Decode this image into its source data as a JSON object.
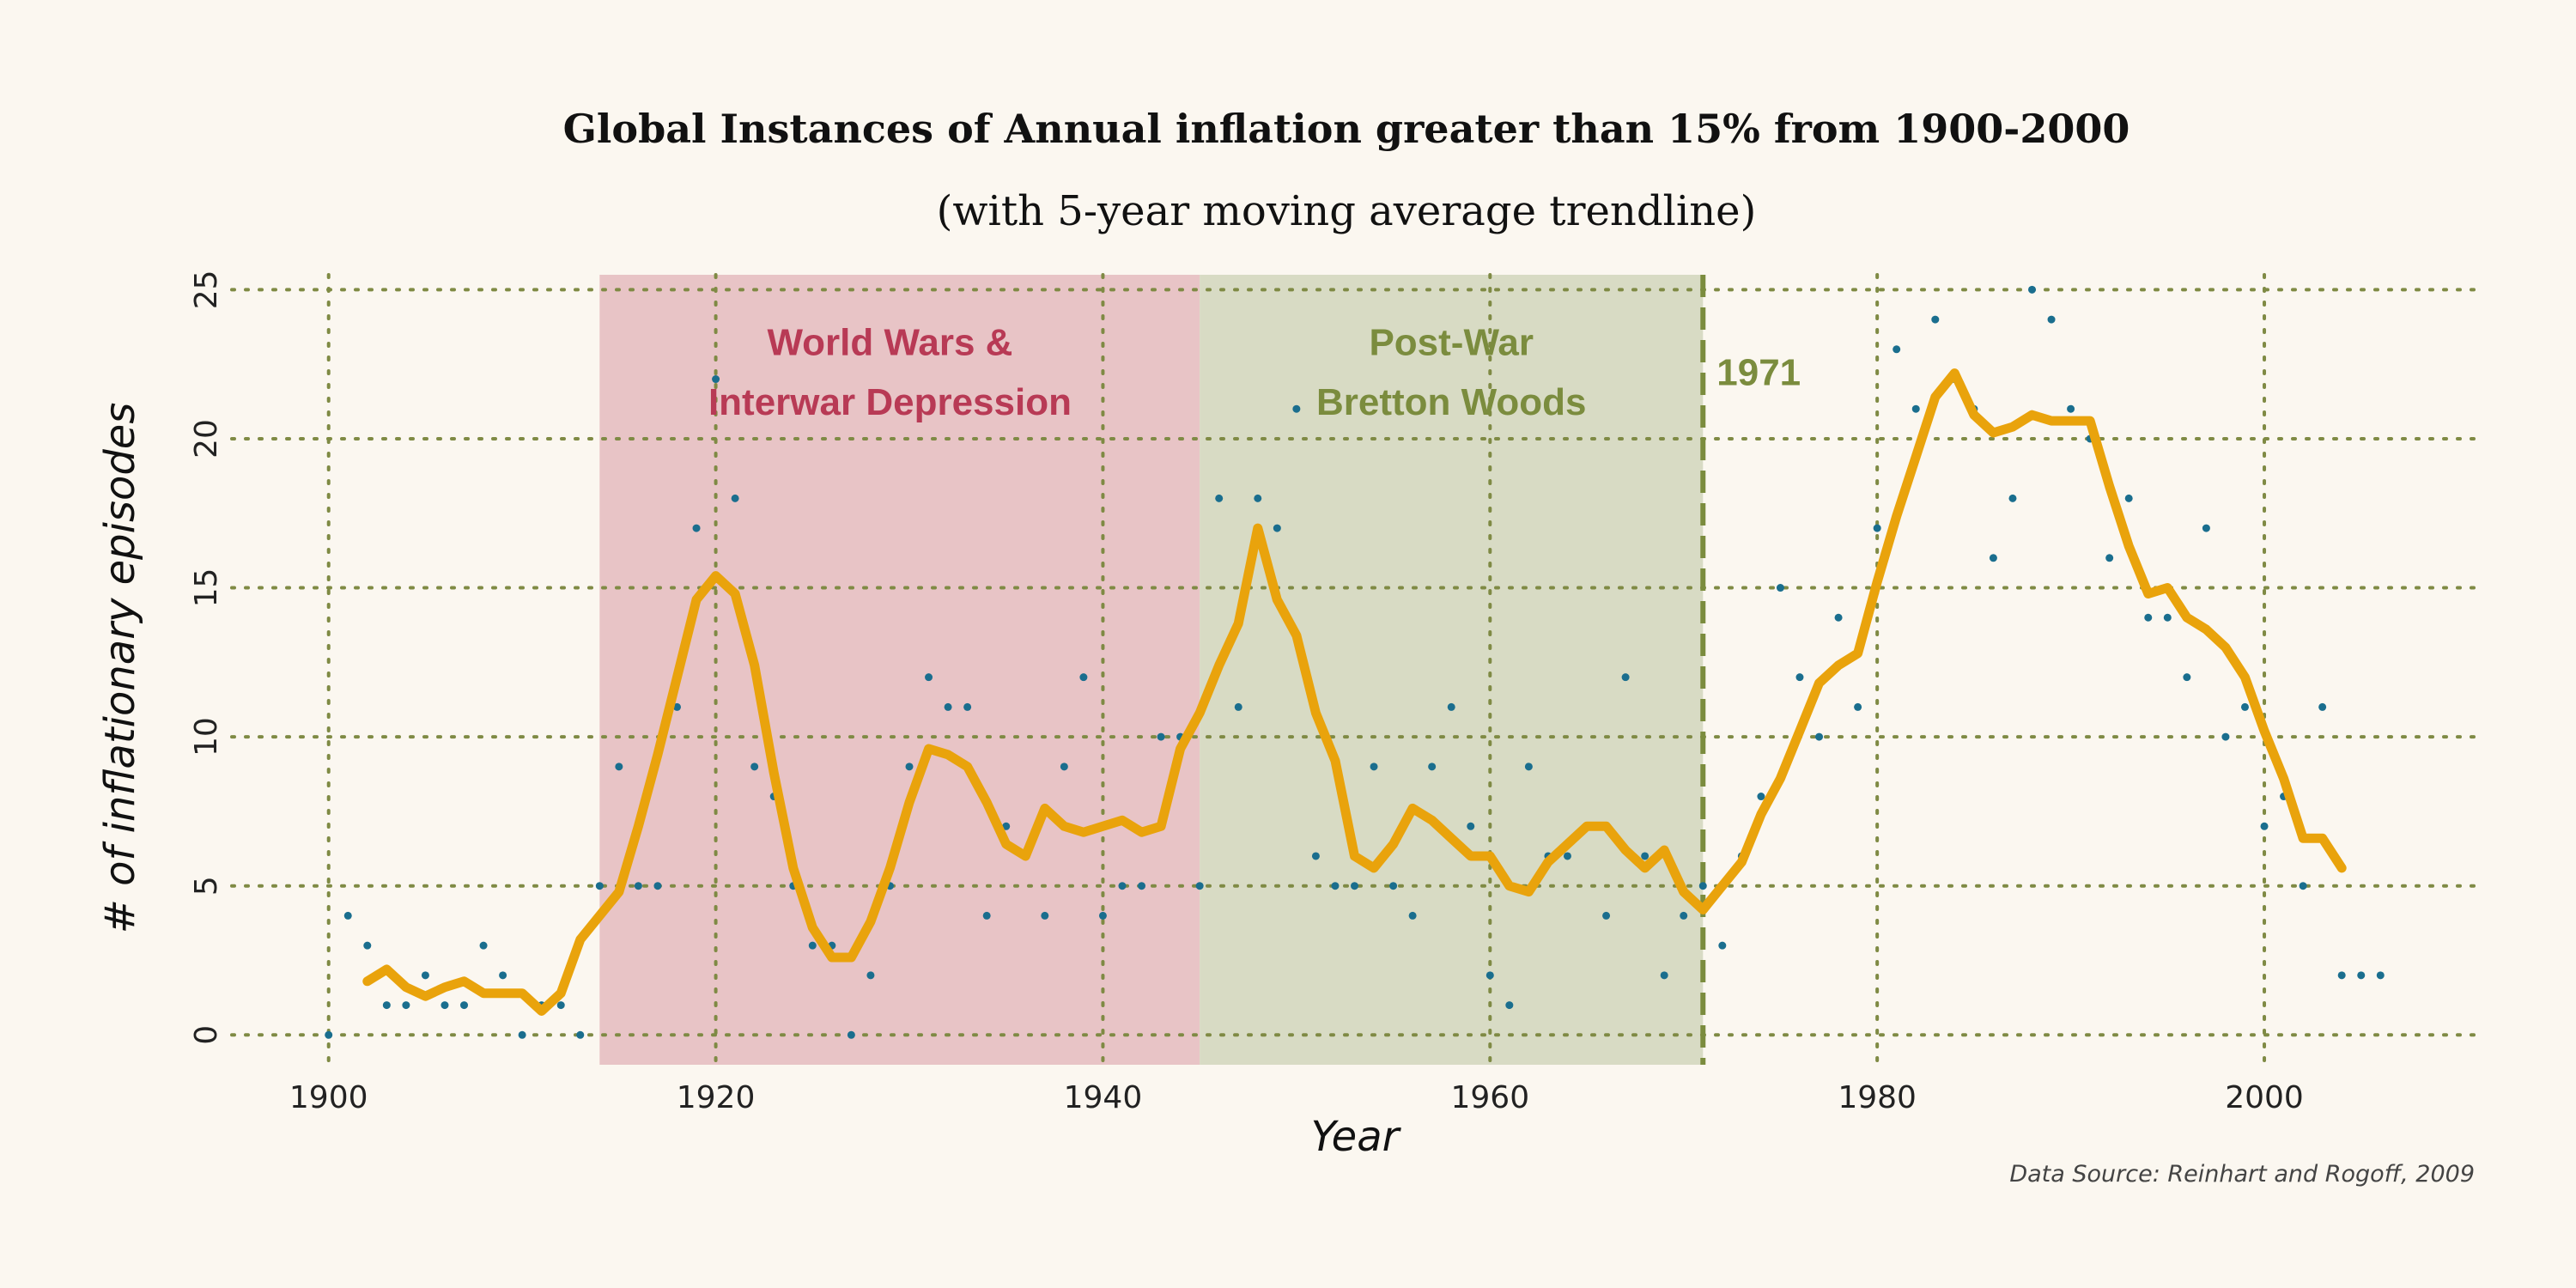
{
  "chart_data": {
    "type": "scatter",
    "title": "Global Instances of Annual inflation greater than 15% from 1900-2000",
    "subtitle": "(with 5-year moving average trendline)",
    "xlabel": "Year",
    "ylabel": "# of inflationary episodes",
    "xlim": [
      1895,
      2011
    ],
    "ylim": [
      -1,
      25.5
    ],
    "xticks": [
      1900,
      1920,
      1940,
      1960,
      1980,
      2000
    ],
    "yticks": [
      0,
      5,
      10,
      15,
      20,
      25
    ],
    "grid": true,
    "source": "Data Source: Reinhart and Rogoff, 2009",
    "regions": [
      {
        "label_lines": [
          "World Wars &",
          "Interwar Depression"
        ],
        "x_start": 1914,
        "x_end": 1945,
        "fill": "#e8c4c6",
        "text_color": "#b83a55",
        "label_x": 1929,
        "label_y": [
          22.8,
          20.8
        ]
      },
      {
        "label_lines": [
          "Post-War",
          "Bretton Woods"
        ],
        "x_start": 1945,
        "x_end": 1971,
        "fill": "#d8dbc4",
        "text_color": "#7b8c3e",
        "label_x": 1958,
        "label_y": [
          22.8,
          20.8
        ]
      }
    ],
    "markers": [
      {
        "x": 1971,
        "label": "1971",
        "color": "#7b8c3e",
        "label_y": 21.8
      }
    ],
    "colors": {
      "points": "#1a6e8e",
      "trend": "#e9a30c",
      "grid": "#7f8a44"
    },
    "series": [
      {
        "type": "scatter",
        "x": [
          1900,
          1901,
          1902,
          1903,
          1904,
          1905,
          1906,
          1907,
          1908,
          1909,
          1910,
          1911,
          1912,
          1913,
          1914,
          1915,
          1916,
          1917,
          1918,
          1919,
          1920,
          1921,
          1922,
          1923,
          1924,
          1925,
          1926,
          1927,
          1928,
          1929,
          1930,
          1931,
          1932,
          1933,
          1934,
          1935,
          1936,
          1937,
          1938,
          1939,
          1940,
          1941,
          1942,
          1943,
          1944,
          1945,
          1946,
          1947,
          1948,
          1949,
          1950,
          1951,
          1952,
          1953,
          1954,
          1955,
          1956,
          1957,
          1958,
          1959,
          1960,
          1961,
          1962,
          1963,
          1964,
          1965,
          1966,
          1967,
          1968,
          1969,
          1970,
          1971,
          1972,
          1973,
          1974,
          1975,
          1976,
          1977,
          1978,
          1979,
          1980,
          1981,
          1982,
          1983,
          1984,
          1985,
          1986,
          1987,
          1988,
          1989,
          1990,
          1991,
          1992,
          1993,
          1994,
          1995,
          1996,
          1997,
          1998,
          1999,
          2000,
          2001,
          2002,
          2003,
          2004,
          2005,
          2006
        ],
        "y": [
          0,
          4,
          3,
          1,
          1,
          2,
          1,
          1,
          3,
          2,
          0,
          1,
          1,
          0,
          5,
          9,
          5,
          5,
          11,
          17,
          22,
          18,
          9,
          8,
          5,
          3,
          3,
          0,
          2,
          5,
          9,
          12,
          11,
          11,
          4,
          7,
          6,
          4,
          9,
          12,
          4,
          5,
          5,
          10,
          10,
          5,
          18,
          11,
          18,
          17,
          21,
          6,
          5,
          5,
          9,
          5,
          4,
          9,
          11,
          7,
          2,
          1,
          9,
          6,
          6,
          7,
          4,
          12,
          6,
          2,
          4,
          5,
          3,
          6,
          8,
          15,
          12,
          10,
          14,
          11,
          17,
          23,
          21,
          24,
          22,
          21,
          16,
          18,
          25,
          24,
          21,
          20,
          16,
          18,
          14,
          14,
          12,
          17,
          10,
          11,
          7,
          8,
          5,
          11,
          2,
          2,
          2
        ]
      },
      {
        "type": "line",
        "name": "5-year moving average",
        "x": [
          1902,
          1903,
          1904,
          1905,
          1906,
          1907,
          1908,
          1909,
          1910,
          1911,
          1912,
          1913,
          1914,
          1915,
          1916,
          1917,
          1918,
          1919,
          1920,
          1921,
          1922,
          1923,
          1924,
          1925,
          1926,
          1927,
          1928,
          1929,
          1930,
          1931,
          1932,
          1933,
          1934,
          1935,
          1936,
          1937,
          1938,
          1939,
          1940,
          1941,
          1942,
          1943,
          1944,
          1945,
          1946,
          1947,
          1948,
          1949,
          1950,
          1951,
          1952,
          1953,
          1954,
          1955,
          1956,
          1957,
          1958,
          1959,
          1960,
          1961,
          1962,
          1963,
          1964,
          1965,
          1966,
          1967,
          1968,
          1969,
          1970,
          1971,
          1972,
          1973,
          1974,
          1975,
          1976,
          1977,
          1978,
          1979,
          1980,
          1981,
          1982,
          1983,
          1984,
          1985,
          1986,
          1987,
          1988,
          1989,
          1990,
          1991,
          1992,
          1993,
          1994,
          1995,
          1996,
          1997,
          1998,
          1999,
          2000,
          2001,
          2002,
          2003,
          2004
        ],
        "y": [
          1.8,
          2.2,
          1.6,
          1.3,
          1.6,
          1.8,
          1.4,
          1.4,
          1.4,
          0.8,
          1.4,
          3.2,
          4.0,
          4.8,
          7.0,
          9.4,
          12.0,
          14.6,
          15.4,
          14.8,
          12.4,
          8.8,
          5.6,
          3.6,
          2.6,
          2.6,
          3.8,
          5.6,
          7.8,
          9.6,
          9.4,
          9.0,
          7.8,
          6.4,
          6.0,
          7.6,
          7.0,
          6.8,
          7.0,
          7.2,
          6.8,
          7.0,
          9.6,
          10.8,
          12.4,
          13.8,
          17.0,
          14.6,
          13.4,
          10.8,
          9.2,
          6.0,
          5.6,
          6.4,
          7.6,
          7.2,
          6.6,
          6.0,
          6.0,
          5.0,
          4.8,
          5.8,
          6.4,
          7.0,
          7.0,
          6.2,
          5.6,
          6.2,
          4.8,
          4.2,
          5.0,
          5.8,
          7.4,
          8.6,
          10.2,
          11.8,
          12.4,
          12.8,
          15.2,
          17.4,
          19.4,
          21.4,
          22.2,
          20.8,
          20.2,
          20.4,
          20.8,
          20.6,
          20.6,
          20.6,
          18.4,
          16.4,
          14.8,
          15.0,
          14.0,
          13.6,
          13.0,
          12.0,
          10.2,
          8.6,
          6.6,
          6.6,
          5.6
        ]
      }
    ]
  }
}
